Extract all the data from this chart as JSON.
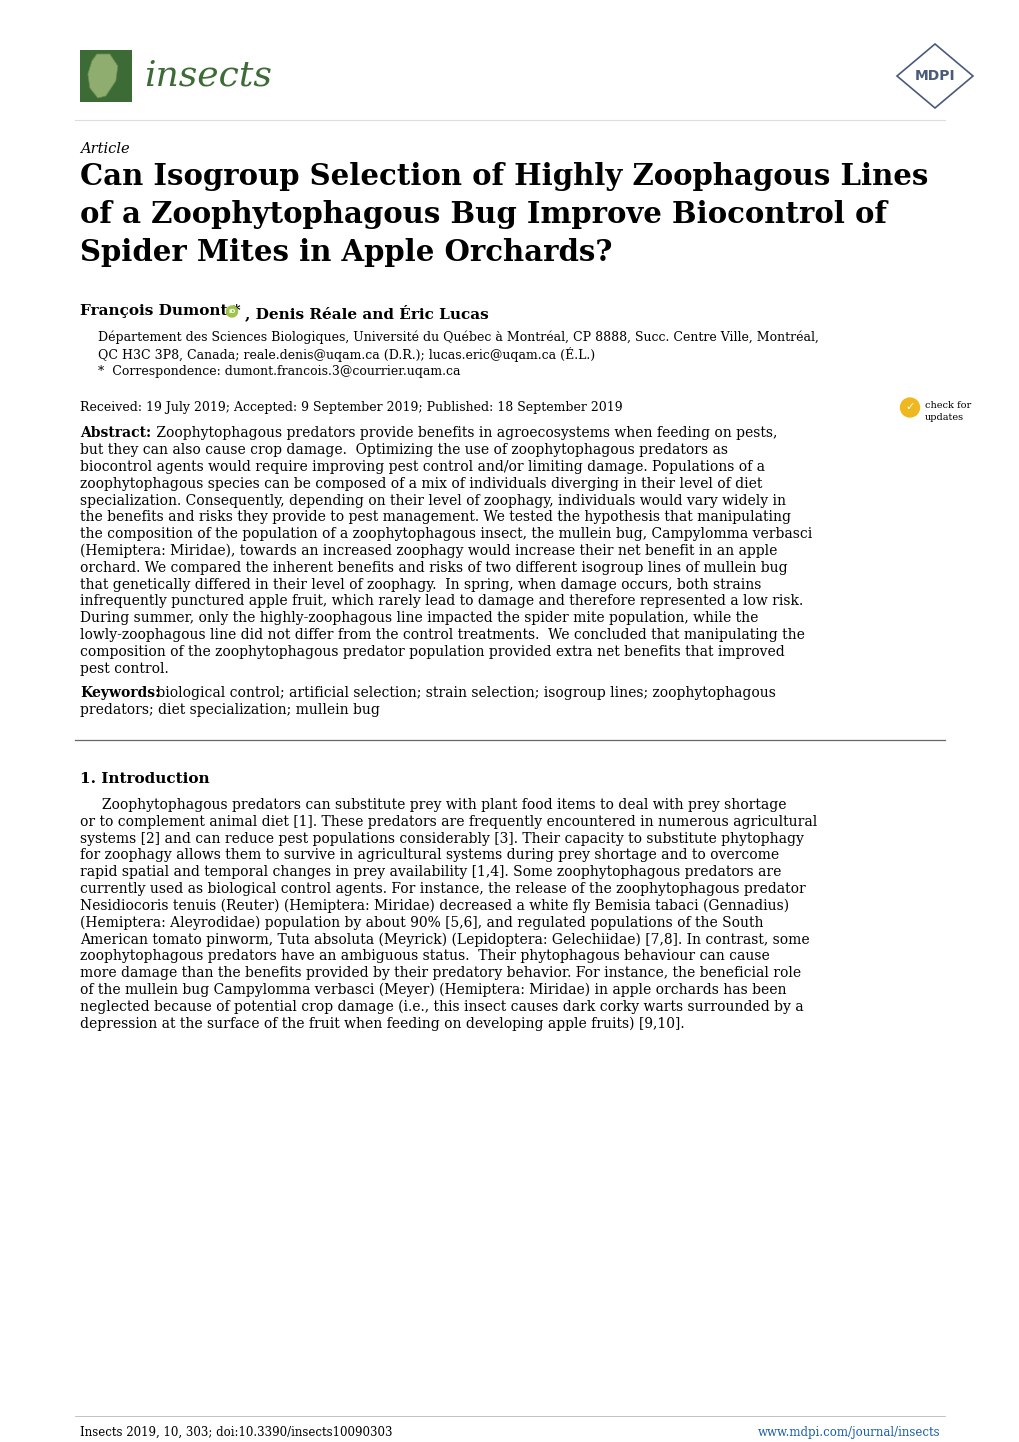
{
  "page_width": 10.2,
  "page_height": 14.42,
  "dpi": 100,
  "bg_color": "#ffffff",
  "journal_logo_color": "#3d6b35",
  "mdpi_color": "#4a5a7a",
  "text_color": "#000000",
  "link_color": "#1a5fa8",
  "separator_color": "#666666",
  "article_label": "Article",
  "title_line1": "Can Isogroup Selection of Highly Zoophagous Lines",
  "title_line2": "of a Zoophytophagous Bug Improve Biocontrol of",
  "title_line3": "Spider Mites in Apple Orchards?",
  "author_bold": "François Dumont *",
  "author_rest": ", Denis Réale and Éric Lucas",
  "affil1": "Département des Sciences Biologiques, Université du Québec à Montréal, CP 8888, Succ. Centre Ville, Montréal,",
  "affil2": "QC H3C 3P8, Canada; reale.denis@uqam.ca (D.R.); lucas.eric@uqam.ca (É.L.)",
  "correspondence": "*  Correspondence: dumont.francois.3@courrier.uqam.ca",
  "received": "Received: 19 July 2019; Accepted: 9 September 2019; Published: 18 September 2019",
  "abstract_lines": [
    "Abstract: Zoophytophagous predators provide benefits in agroecosystems when feeding on pests,",
    "but they can also cause crop damage.  Optimizing the use of zoophytophagous predators as",
    "biocontrol agents would require improving pest control and/or limiting damage. Populations of a",
    "zoophytophagous species can be composed of a mix of individuals diverging in their level of diet",
    "specialization. Consequently, depending on their level of zoophagy, individuals would vary widely in",
    "the benefits and risks they provide to pest management. We tested the hypothesis that manipulating",
    "the composition of the population of a zoophytophagous insect, the mullein bug, Campylomma verbasci",
    "(Hemiptera: Miridae), towards an increased zoophagy would increase their net benefit in an apple",
    "orchard. We compared the inherent benefits and risks of two different isogroup lines of mullein bug",
    "that genetically differed in their level of zoophagy.  In spring, when damage occurs, both strains",
    "infrequently punctured apple fruit, which rarely lead to damage and therefore represented a low risk.",
    "During summer, only the highly-zoophagous line impacted the spider mite population, while the",
    "lowly-zoophagous line did not differ from the control treatments.  We concluded that manipulating the",
    "composition of the zoophytophagous predator population provided extra net benefits that improved",
    "pest control."
  ],
  "keywords_line1": "Keywords: biological control; artificial selection; strain selection; isogroup lines; zoophytophagous",
  "keywords_line2": "predators; diet specialization; mullein bug",
  "intro_heading": "1. Introduction",
  "intro_lines": [
    "     Zoophytophagous predators can substitute prey with plant food items to deal with prey shortage",
    "or to complement animal diet [1]. These predators are frequently encountered in numerous agricultural",
    "systems [2] and can reduce pest populations considerably [3]. Their capacity to substitute phytophagy",
    "for zoophagy allows them to survive in agricultural systems during prey shortage and to overcome",
    "rapid spatial and temporal changes in prey availability [1,4]. Some zoophytophagous predators are",
    "currently used as biological control agents. For instance, the release of the zoophytophagous predator",
    "Nesidiocoris tenuis (Reuter) (Hemiptera: Miridae) decreased a white fly Bemisia tabaci (Gennadius)",
    "(Hemiptera: Aleyrodidae) population by about 90% [5,6], and regulated populations of the South",
    "American tomato pinworm, Tuta absoluta (Meyrick) (Lepidoptera: Gelechiidae) [7,8]. In contrast, some",
    "zoophytophagous predators have an ambiguous status.  Their phytophagous behaviour can cause",
    "more damage than the benefits provided by their predatory behavior. For instance, the beneficial role",
    "of the mullein bug Campylomma verbasci (Meyer) (Hemiptera: Miridae) in apple orchards has been",
    "neglected because of potential crop damage (i.e., this insect causes dark corky warts surrounded by a",
    "depression at the surface of the fruit when feeding on developing apple fruits) [9,10]."
  ],
  "footer_left": "Insects 2019, 10, 303; doi:10.3390/insects10090303",
  "footer_right": "www.mdpi.com/journal/insects"
}
